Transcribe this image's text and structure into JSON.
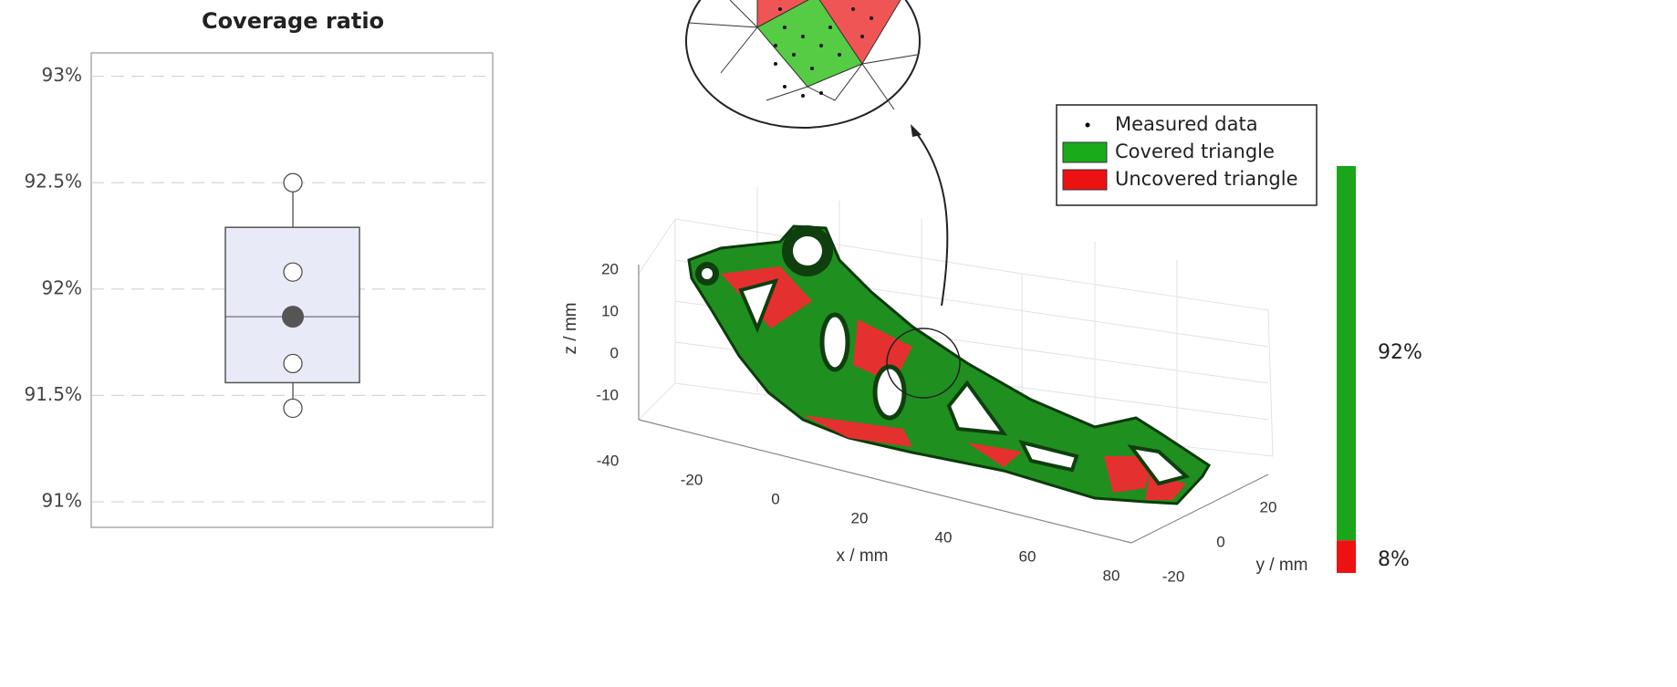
{
  "chart_data": [
    {
      "type": "box",
      "title": "Coverage ratio",
      "ylim": [
        90.88,
        93.11
      ],
      "yticks": [
        {
          "value": 91,
          "label": "91%"
        },
        {
          "value": 91.5,
          "label": "91.5%"
        },
        {
          "value": 92,
          "label": "92%"
        },
        {
          "value": 92.5,
          "label": "92.5%"
        },
        {
          "value": 93,
          "label": "93%"
        }
      ],
      "grid": true,
      "box": {
        "whisker_low": 91.44,
        "q1": 91.56,
        "median": 91.87,
        "q3": 92.29,
        "whisker_high": 92.5
      },
      "color": "#e8eaf8",
      "points": [
        92.5,
        92.08,
        91.65,
        91.44
      ],
      "mean": 91.87
    },
    {
      "type": "mesh3d",
      "xlabel": "x / mm",
      "ylabel": "y / mm",
      "zlabel": "z / mm",
      "xticks": [
        -40,
        -20,
        0,
        20,
        40,
        60,
        80
      ],
      "yticks": [
        -20,
        0,
        20
      ],
      "zticks": [
        -10,
        0,
        10,
        20
      ],
      "legend": [
        {
          "name": "Measured data",
          "color": "#000000"
        },
        {
          "name": "Covered triangle",
          "color": "#1aab1a"
        },
        {
          "name": "Uncovered triangle",
          "color": "#ee1111"
        }
      ]
    },
    {
      "type": "stacked-bar",
      "values": [
        92,
        8
      ],
      "value_labels": [
        "92%",
        "8%"
      ],
      "colors": [
        "#1aa51a",
        "#ee1111"
      ]
    }
  ]
}
